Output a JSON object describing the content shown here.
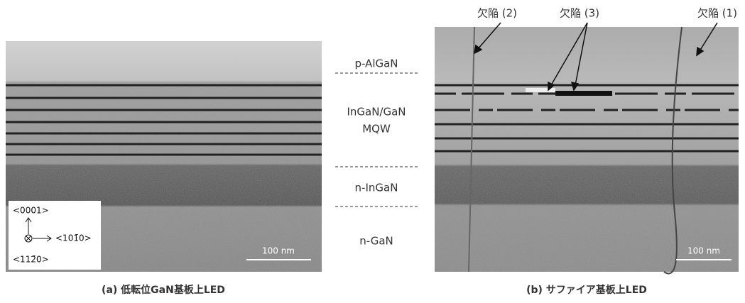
{
  "panel_a": {
    "caption": "(a) 低転位GaN基板上LED",
    "scale_bar": "100 nm",
    "directions": [
      "<0001>",
      "<101̄0>",
      "<112̄0>"
    ]
  },
  "layers": [
    "p-AlGaN",
    "InGaN/GaN",
    "MQW",
    "n-InGaN",
    "n-GaN"
  ],
  "panel_b": {
    "caption": "(b) サファイア基板上LED",
    "scale_bar": "100 nm",
    "defects": [
      "欠陥 (2)",
      "欠陥 (3)",
      "欠陥 (1)"
    ]
  }
}
